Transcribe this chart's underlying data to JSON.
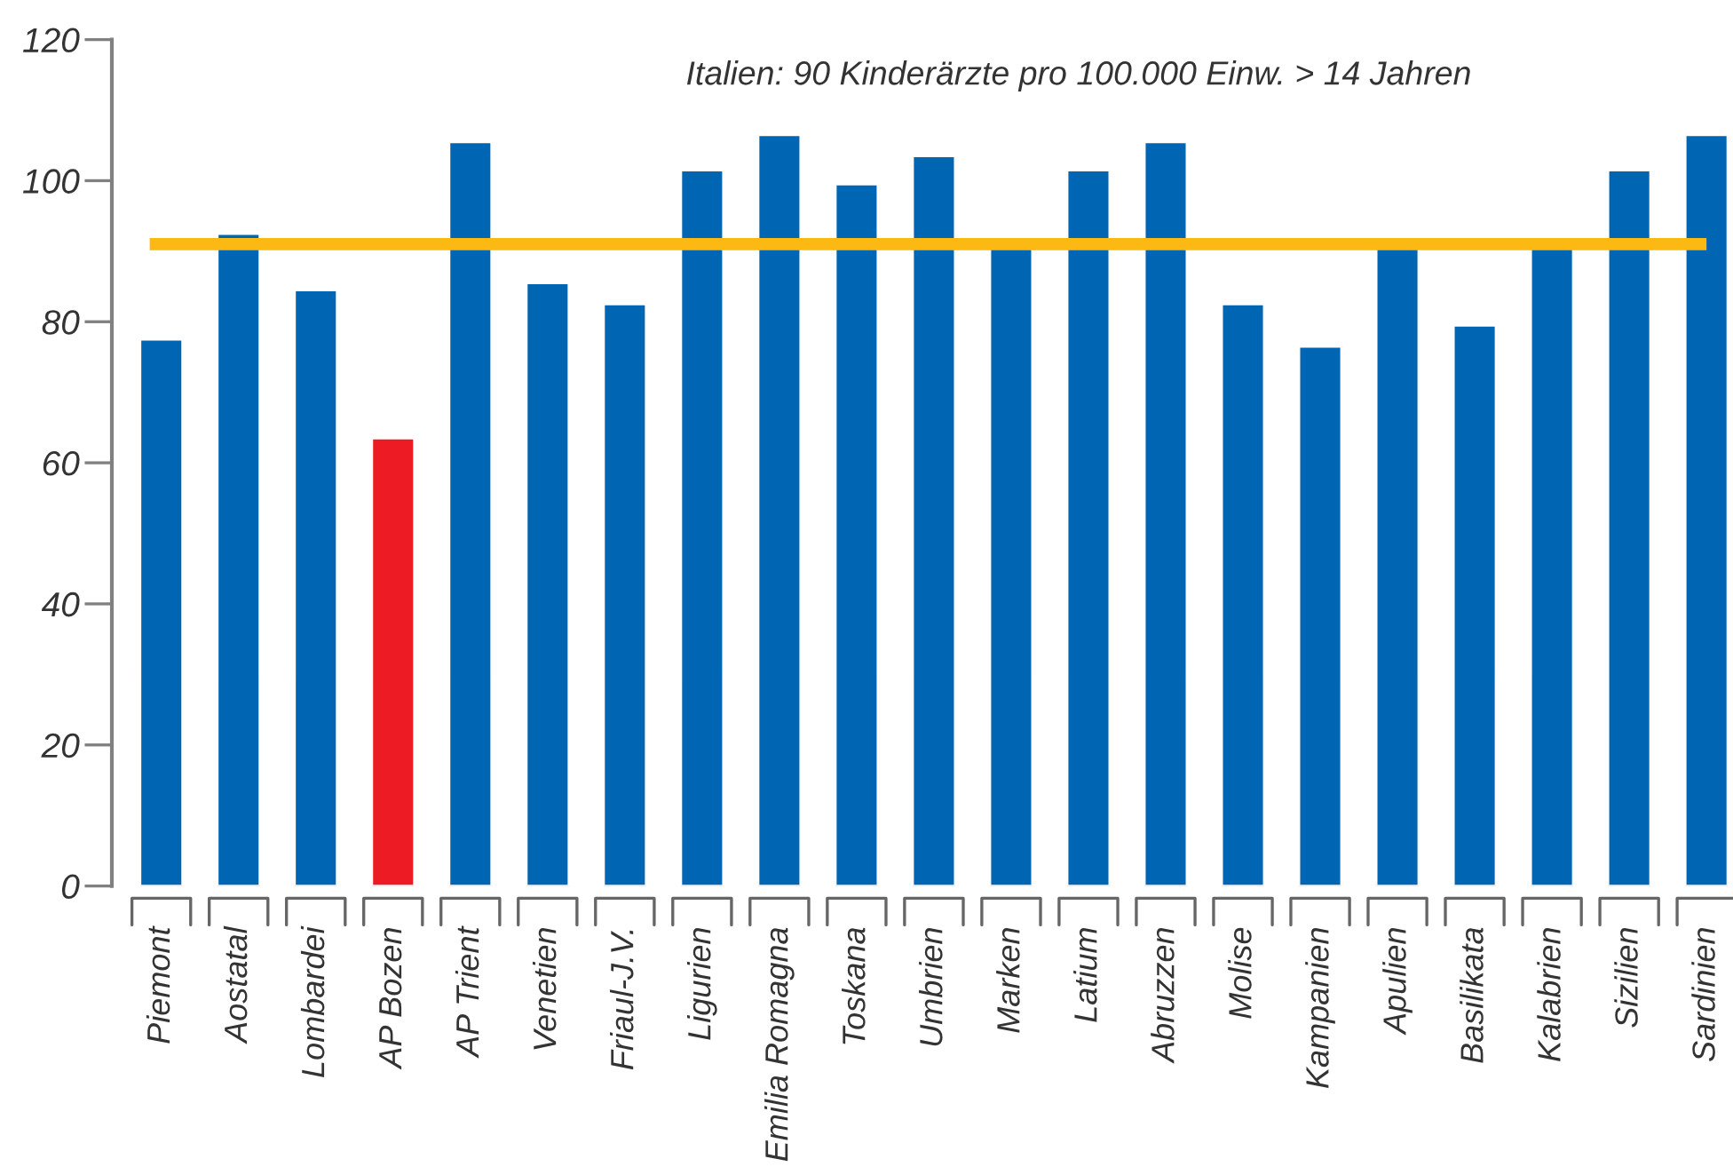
{
  "chart_data": {
    "type": "bar",
    "categories": [
      "Piemont",
      "Aostatal",
      "Lombardei",
      "AP Bozen",
      "AP Trient",
      "Venetien",
      "Friaul-J.V.",
      "Ligurien",
      "Emilia Romagna",
      "Toskana",
      "Umbrien",
      "Marken",
      "Latium",
      "Abruzzen",
      "Molise",
      "Kampanien",
      "Apulien",
      "Basilikata",
      "Kalabrien",
      "Sizilien",
      "Sardinien"
    ],
    "values": [
      77.5,
      92.5,
      84.5,
      63.5,
      105.5,
      85.5,
      82.5,
      101.5,
      106.5,
      99.5,
      103.5,
      91,
      101.5,
      105.5,
      82.5,
      76.5,
      91,
      79.5,
      91,
      101.5,
      106.5
    ],
    "colors": [
      "#0066b3",
      "#0066b3",
      "#0066b3",
      "#ed1c24",
      "#0066b3",
      "#0066b3",
      "#0066b3",
      "#0066b3",
      "#0066b3",
      "#0066b3",
      "#0066b3",
      "#0066b3",
      "#0066b3",
      "#0066b3",
      "#0066b3",
      "#0066b3",
      "#0066b3",
      "#0066b3",
      "#0066b3",
      "#0066b3",
      "#0066b3"
    ],
    "ylim": [
      0,
      120
    ],
    "yticks": [
      0,
      20,
      40,
      60,
      80,
      100,
      120
    ],
    "ref_lines": [
      {
        "axis": "y",
        "value": 91,
        "color": "#fdb913"
      }
    ],
    "annotations": [
      "Italien: 90 Kinderärzte pro 100.000 Einw. > 14 Jahren"
    ]
  }
}
